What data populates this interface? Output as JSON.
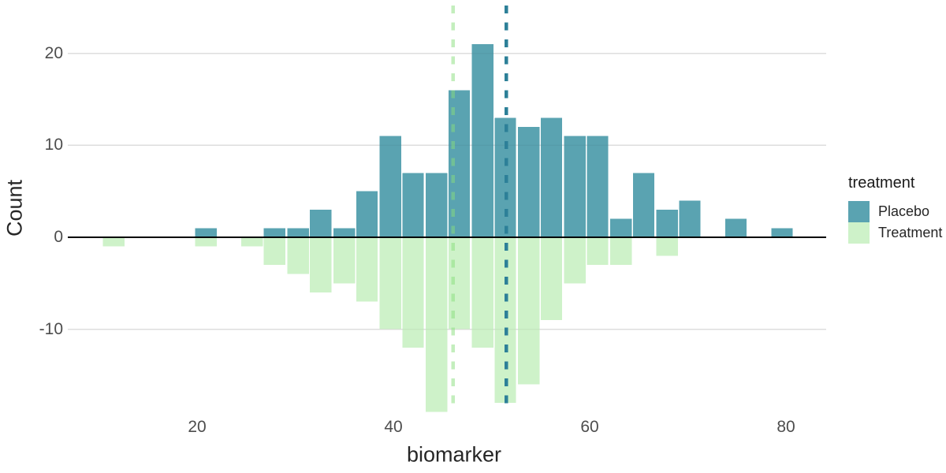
{
  "chart_data": {
    "type": "bar",
    "subtype": "mirrored-histogram",
    "title": "",
    "xlabel": "biomarker",
    "ylabel": "Count",
    "x_ticks": [
      20,
      40,
      60,
      80
    ],
    "y_ticks": [
      20,
      10,
      0,
      -10
    ],
    "xlim": [
      7,
      84
    ],
    "ylim": [
      -19,
      25
    ],
    "grid": "horizontal-only",
    "bin_width": 2.35,
    "bin_centers": [
      11.5,
      13.8,
      16.2,
      18.5,
      20.9,
      23.2,
      25.6,
      27.9,
      30.3,
      32.6,
      35.0,
      37.3,
      39.7,
      42.0,
      44.4,
      46.7,
      49.1,
      51.4,
      53.8,
      56.1,
      58.5,
      60.8,
      63.2,
      65.5,
      67.9,
      70.2,
      72.6,
      74.9,
      77.3,
      79.6
    ],
    "series": [
      {
        "name": "Placebo",
        "direction": "up",
        "color": "#5aa3b1",
        "values": [
          0,
          0,
          0,
          0,
          1,
          0,
          0,
          1,
          1,
          3,
          1,
          5,
          11,
          7,
          7,
          16,
          21,
          13,
          12,
          13,
          11,
          11,
          2,
          7,
          3,
          4,
          0,
          2,
          0,
          1
        ]
      },
      {
        "name": "Treatment",
        "direction": "down",
        "color": "#cef2c9",
        "values": [
          1,
          0,
          0,
          0,
          1,
          0,
          1,
          3,
          4,
          6,
          5,
          7,
          10,
          12,
          19,
          10,
          12,
          18,
          16,
          9,
          5,
          3,
          3,
          0,
          2,
          0,
          0,
          0,
          0,
          0
        ]
      }
    ],
    "mean_lines": [
      {
        "series": "Treatment",
        "value": 46.1,
        "color": "#87dd7c",
        "opacity": 0.5,
        "style": "dashed"
      },
      {
        "series": "Placebo",
        "value": 51.5,
        "color": "#2d8098",
        "opacity": 1,
        "style": "dashed"
      }
    ],
    "zero_line_color": "#000000",
    "gridline_color": "#e8e8e8",
    "tick_label_color": "#4d4d4d",
    "axis_title_color": "#262626",
    "legend_position": "right"
  },
  "legend": {
    "title": "treatment",
    "items": [
      {
        "label": "Placebo",
        "color": "#5aa3b1"
      },
      {
        "label": "Treatment",
        "color": "#cef2c9"
      }
    ]
  }
}
